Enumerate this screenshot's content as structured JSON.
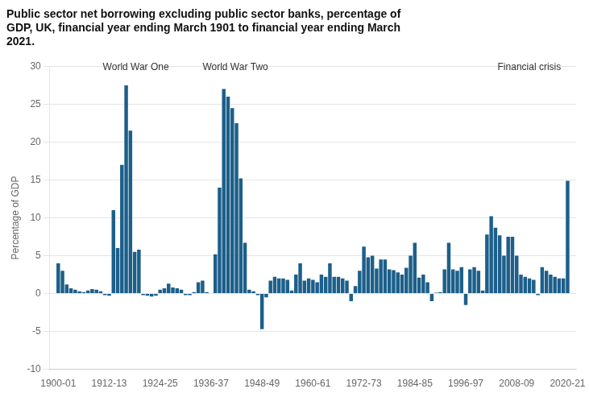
{
  "chart_data": {
    "type": "bar",
    "title": [
      "Public sector net borrowing excluding public sector banks, percentage of",
      "GDP, UK, financial year ending March 1901 to financial year ending March",
      "2021."
    ],
    "ylabel": "Percentage of GDP",
    "color": "#1c5f8a",
    "grid": "y",
    "ylim": [
      -10,
      30
    ],
    "yticks": [
      -10,
      -5,
      0,
      5,
      10,
      15,
      20,
      25,
      30
    ],
    "xlim": [
      1898,
      2022
    ],
    "xticks": [
      {
        "value": 1900,
        "label": "1900-01"
      },
      {
        "value": 1912,
        "label": "1912-13"
      },
      {
        "value": 1924,
        "label": "1924-25"
      },
      {
        "value": 1936,
        "label": "1936-37"
      },
      {
        "value": 1948,
        "label": "1948-49"
      },
      {
        "value": 1960,
        "label": "1960-61"
      },
      {
        "value": 1972,
        "label": "1972-73"
      },
      {
        "value": 1984,
        "label": "1984-85"
      },
      {
        "value": 1996,
        "label": "1996-97"
      },
      {
        "value": 2008,
        "label": "2008-09"
      },
      {
        "value": 2020,
        "label": "2020-21"
      }
    ],
    "annotations": [
      {
        "text": "World War One",
        "x": 1910.5,
        "y": 29.2
      },
      {
        "text": "World War Two",
        "x": 1934.0,
        "y": 29.2
      },
      {
        "text": "Financial crisis",
        "x": 2003.5,
        "y": 29.2
      }
    ],
    "x": [
      1900,
      1901,
      1902,
      1903,
      1904,
      1905,
      1906,
      1907,
      1908,
      1909,
      1910,
      1911,
      1912,
      1913,
      1914,
      1915,
      1916,
      1917,
      1918,
      1919,
      1920,
      1921,
      1922,
      1923,
      1924,
      1925,
      1926,
      1927,
      1928,
      1929,
      1930,
      1931,
      1932,
      1933,
      1934,
      1935,
      1936,
      1937,
      1938,
      1939,
      1940,
      1941,
      1942,
      1943,
      1944,
      1945,
      1946,
      1947,
      1948,
      1949,
      1950,
      1951,
      1952,
      1953,
      1954,
      1955,
      1956,
      1957,
      1958,
      1959,
      1960,
      1961,
      1962,
      1963,
      1964,
      1965,
      1966,
      1967,
      1968,
      1969,
      1970,
      1971,
      1972,
      1973,
      1974,
      1975,
      1976,
      1977,
      1978,
      1979,
      1980,
      1981,
      1982,
      1983,
      1984,
      1985,
      1986,
      1987,
      1988,
      1989,
      1990,
      1991,
      1992,
      1993,
      1994,
      1995,
      1996,
      1997,
      1998,
      1999,
      2000,
      2001,
      2002,
      2003,
      2004,
      2005,
      2006,
      2007,
      2008,
      2009,
      2010,
      2011,
      2012,
      2013,
      2014,
      2015,
      2016,
      2017,
      2018,
      2019,
      2020
    ],
    "values": [
      4.0,
      3.0,
      1.2,
      0.7,
      0.5,
      0.3,
      0.2,
      0.4,
      0.6,
      0.5,
      0.3,
      -0.2,
      -0.3,
      11.0,
      6.0,
      17.0,
      27.5,
      21.5,
      5.5,
      5.8,
      -0.2,
      -0.3,
      -0.4,
      -0.3,
      0.5,
      0.7,
      1.3,
      0.8,
      0.7,
      0.5,
      -0.2,
      -0.2,
      0.2,
      1.5,
      1.7,
      0.2,
      0.0,
      5.2,
      14.0,
      27.0,
      26.0,
      24.5,
      22.5,
      15.2,
      6.7,
      0.5,
      0.3,
      -0.2,
      -4.7,
      -0.5,
      1.7,
      2.2,
      2.0,
      2.0,
      1.8,
      0.4,
      2.5,
      4.0,
      1.7,
      2.0,
      1.8,
      1.5,
      2.5,
      2.2,
      4.0,
      2.2,
      2.2,
      2.0,
      1.7,
      -1.0,
      1.0,
      3.0,
      6.2,
      4.8,
      5.0,
      3.3,
      4.5,
      4.5,
      3.2,
      3.1,
      2.8,
      2.5,
      3.4,
      5.0,
      6.7,
      2.1,
      2.5,
      1.5,
      -1.0,
      0.1,
      0.2,
      3.2,
      6.7,
      3.2,
      3.0,
      3.5,
      -1.5,
      3.2,
      3.5,
      3.0,
      0.4,
      7.8,
      10.2,
      8.7,
      7.7,
      5.0,
      7.5,
      7.5,
      5.0,
      2.5,
      2.2,
      2.0,
      1.8,
      -0.2,
      3.5,
      3.0,
      2.5,
      2.2,
      2.0,
      2.0,
      14.9
    ]
  }
}
